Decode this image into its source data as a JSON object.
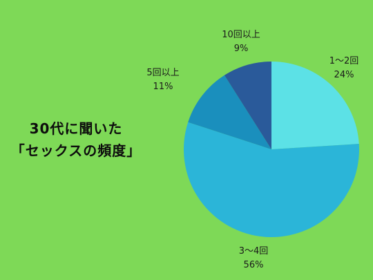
{
  "title": {
    "line1": "30代に聞いた",
    "line2": "「セックスの頻度」"
  },
  "chart_data": {
    "type": "pie",
    "title": "30代に聞いた「セックスの頻度」",
    "slices": [
      {
        "label": "1〜2回",
        "value": 24,
        "value_label": "24%",
        "color": "#5ce1e6"
      },
      {
        "label": "3〜4回",
        "value": 56,
        "value_label": "56%",
        "color": "#2bb5d8"
      },
      {
        "label": "5回以上",
        "value": 11,
        "value_label": "11%",
        "color": "#1a8fbd"
      },
      {
        "label": "10回以上",
        "value": 9,
        "value_label": "9%",
        "color": "#2a5a9a"
      }
    ]
  }
}
